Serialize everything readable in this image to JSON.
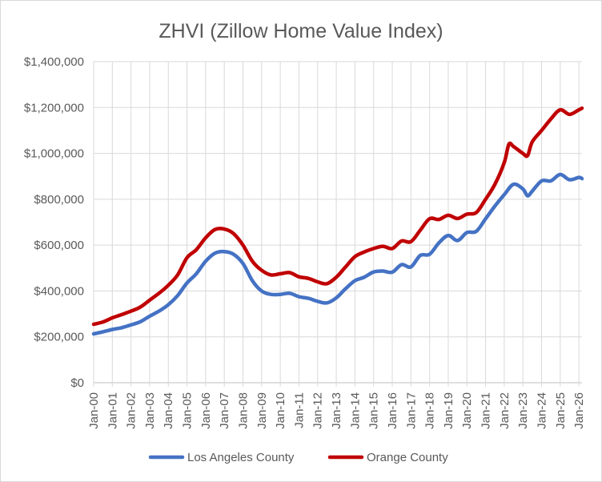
{
  "chart_data": {
    "type": "line",
    "title": "ZHVI (Zillow Home Value Index)",
    "xlabel": "",
    "ylabel": "",
    "x_start": "Jan-00",
    "x_ticks": [
      "Jan-00",
      "Jan-01",
      "Jan-02",
      "Jan-03",
      "Jan-04",
      "Jan-05",
      "Jan-06",
      "Jan-07",
      "Jan-08",
      "Jan-09",
      "Jan-10",
      "Jan-11",
      "Jan-12",
      "Jan-13",
      "Jan-14",
      "Jan-15",
      "Jan-16",
      "Jan-17",
      "Jan-18",
      "Jan-19",
      "Jan-20",
      "Jan-21",
      "Jan-22",
      "Jan-23",
      "Jan-24",
      "Jan-25",
      "Jan-26"
    ],
    "y_ticks": [
      "$0",
      "$200,000",
      "$400,000",
      "$600,000",
      "$800,000",
      "$1,000,000",
      "$1,200,000",
      "$1,400,000"
    ],
    "ylim": [
      0,
      1400000
    ],
    "grid": true,
    "legend_position": "bottom",
    "series": [
      {
        "name": "Los Angeles County",
        "color": "#4472C4",
        "points": [
          [
            "Jan-00",
            213000
          ],
          [
            "Jul-00",
            222000
          ],
          [
            "Jan-01",
            232000
          ],
          [
            "Jul-01",
            240000
          ],
          [
            "Jan-02",
            252000
          ],
          [
            "Jul-02",
            266000
          ],
          [
            "Jan-03",
            290000
          ],
          [
            "Jul-03",
            312000
          ],
          [
            "Jan-04",
            340000
          ],
          [
            "Jul-04",
            380000
          ],
          [
            "Jan-05",
            435000
          ],
          [
            "Jul-05",
            475000
          ],
          [
            "Jan-06",
            530000
          ],
          [
            "Jul-06",
            565000
          ],
          [
            "Jan-07",
            572000
          ],
          [
            "Jul-07",
            560000
          ],
          [
            "Jan-08",
            520000
          ],
          [
            "Jul-08",
            445000
          ],
          [
            "Jan-09",
            400000
          ],
          [
            "Jul-09",
            385000
          ],
          [
            "Jan-10",
            385000
          ],
          [
            "Jul-10",
            390000
          ],
          [
            "Jan-11",
            375000
          ],
          [
            "Jul-11",
            368000
          ],
          [
            "Jan-12",
            355000
          ],
          [
            "Jul-12",
            348000
          ],
          [
            "Jan-13",
            370000
          ],
          [
            "Jul-13",
            410000
          ],
          [
            "Jan-14",
            445000
          ],
          [
            "Jul-14",
            460000
          ],
          [
            "Jan-15",
            483000
          ],
          [
            "Jul-15",
            487000
          ],
          [
            "Jan-16",
            482000
          ],
          [
            "Jul-16",
            515000
          ],
          [
            "Jan-17",
            505000
          ],
          [
            "Jul-17",
            555000
          ],
          [
            "Jan-18",
            560000
          ],
          [
            "Jul-18",
            610000
          ],
          [
            "Jan-19",
            642000
          ],
          [
            "Jul-19",
            620000
          ],
          [
            "Jan-20",
            655000
          ],
          [
            "Jul-20",
            660000
          ],
          [
            "Jan-21",
            715000
          ],
          [
            "Jul-21",
            770000
          ],
          [
            "Jan-22",
            820000
          ],
          [
            "Jul-22",
            865000
          ],
          [
            "Jan-23",
            845000
          ],
          [
            "Apr-23",
            815000
          ],
          [
            "Jul-23",
            835000
          ],
          [
            "Jan-24",
            880000
          ],
          [
            "Jul-24",
            880000
          ],
          [
            "Jan-25",
            908000
          ],
          [
            "Jul-25",
            885000
          ],
          [
            "Jan-26",
            895000
          ],
          [
            "Mar-26",
            890000
          ]
        ]
      },
      {
        "name": "Orange County",
        "color": "#C00000",
        "points": [
          [
            "Jan-00",
            255000
          ],
          [
            "Jul-00",
            265000
          ],
          [
            "Jan-01",
            283000
          ],
          [
            "Jul-01",
            297000
          ],
          [
            "Jan-02",
            312000
          ],
          [
            "Jul-02",
            330000
          ],
          [
            "Jan-03",
            360000
          ],
          [
            "Jul-03",
            390000
          ],
          [
            "Jan-04",
            425000
          ],
          [
            "Jul-04",
            470000
          ],
          [
            "Jan-05",
            545000
          ],
          [
            "Jul-05",
            580000
          ],
          [
            "Jan-06",
            632000
          ],
          [
            "Jul-06",
            668000
          ],
          [
            "Jan-07",
            670000
          ],
          [
            "Jul-07",
            650000
          ],
          [
            "Jan-08",
            600000
          ],
          [
            "Jul-08",
            530000
          ],
          [
            "Jan-09",
            490000
          ],
          [
            "Jul-09",
            470000
          ],
          [
            "Jan-10",
            475000
          ],
          [
            "Jul-10",
            480000
          ],
          [
            "Jan-11",
            462000
          ],
          [
            "Jul-11",
            455000
          ],
          [
            "Jan-12",
            440000
          ],
          [
            "Jul-12",
            432000
          ],
          [
            "Jan-13",
            460000
          ],
          [
            "Jul-13",
            505000
          ],
          [
            "Jan-14",
            550000
          ],
          [
            "Jul-14",
            570000
          ],
          [
            "Jan-15",
            585000
          ],
          [
            "Jul-15",
            595000
          ],
          [
            "Jan-16",
            585000
          ],
          [
            "Jul-16",
            618000
          ],
          [
            "Jan-17",
            615000
          ],
          [
            "Jul-17",
            665000
          ],
          [
            "Jan-18",
            715000
          ],
          [
            "Jul-18",
            712000
          ],
          [
            "Jan-19",
            730000
          ],
          [
            "Jul-19",
            716000
          ],
          [
            "Jan-20",
            735000
          ],
          [
            "Jul-20",
            742000
          ],
          [
            "Jan-21",
            800000
          ],
          [
            "Jul-21",
            865000
          ],
          [
            "Jan-22",
            960000
          ],
          [
            "Apr-22",
            1040000
          ],
          [
            "Jul-22",
            1030000
          ],
          [
            "Jan-23",
            1000000
          ],
          [
            "Apr-23",
            990000
          ],
          [
            "Jul-23",
            1050000
          ],
          [
            "Jan-24",
            1100000
          ],
          [
            "Jul-24",
            1150000
          ],
          [
            "Jan-25",
            1190000
          ],
          [
            "Jul-25",
            1170000
          ],
          [
            "Jan-26",
            1190000
          ],
          [
            "Mar-26",
            1197000
          ]
        ]
      }
    ]
  }
}
